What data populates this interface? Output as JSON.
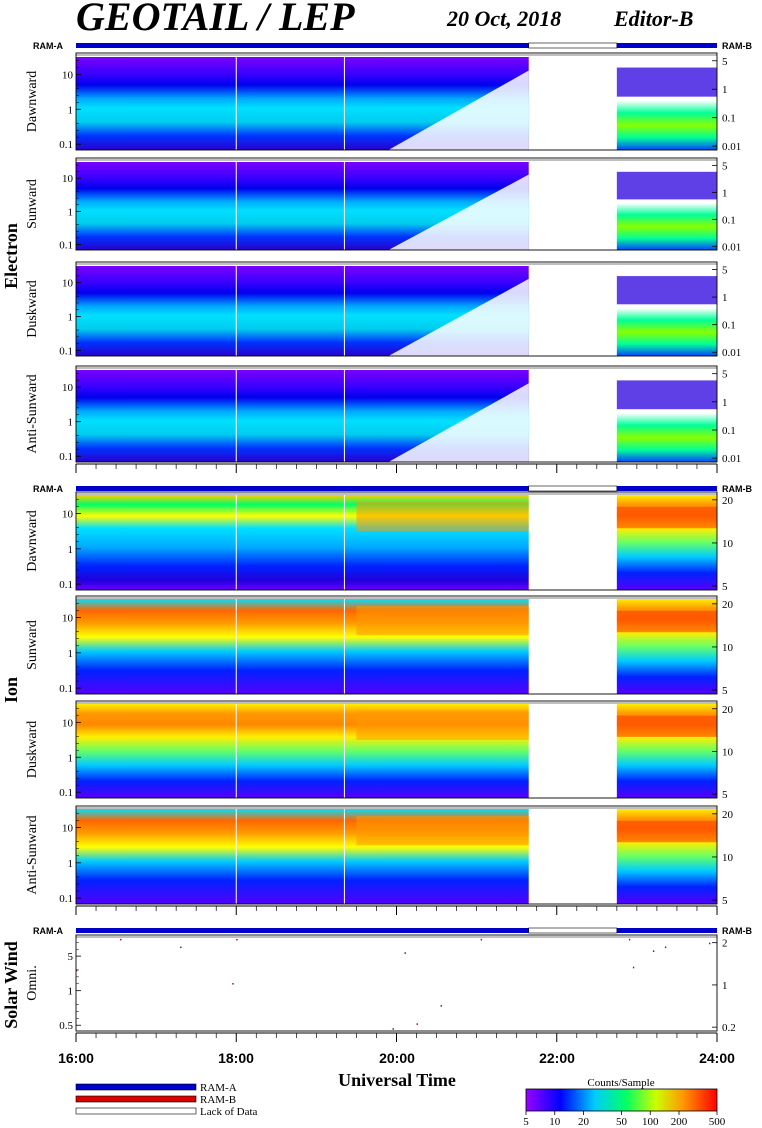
{
  "header": {
    "title": "GEOTAIL / LEP",
    "date": "20 Oct, 2018",
    "editor": "Editor-B"
  },
  "ram_labels": {
    "left": "RAM-A",
    "right": "RAM-B"
  },
  "groups": [
    {
      "label": "Electron"
    },
    {
      "label": "Ion"
    },
    {
      "label": "Solar Wind"
    }
  ],
  "panels": [
    {
      "label": "Dawnward",
      "species": "electron",
      "left_ticks": [
        "10",
        "1",
        "0.1"
      ],
      "right_ticks": [
        "5",
        "1",
        "0.1",
        "0.01"
      ]
    },
    {
      "label": "Sunward",
      "species": "electron",
      "left_ticks": [
        "10",
        "1",
        "0.1"
      ],
      "right_ticks": [
        "5",
        "1",
        "0.1",
        "0.01"
      ]
    },
    {
      "label": "Duskward",
      "species": "electron",
      "left_ticks": [
        "10",
        "1",
        "0.1"
      ],
      "right_ticks": [
        "5",
        "1",
        "0.1",
        "0.01"
      ]
    },
    {
      "label": "Anti-Sunward",
      "species": "electron",
      "left_ticks": [
        "10",
        "1",
        "0.1"
      ],
      "right_ticks": [
        "5",
        "1",
        "0.1",
        "0.01"
      ]
    },
    {
      "label": "Dawnward",
      "species": "ion",
      "left_ticks": [
        "10",
        "1",
        "0.1"
      ],
      "right_ticks": [
        "20",
        "10",
        "5"
      ]
    },
    {
      "label": "Sunward",
      "species": "ion",
      "left_ticks": [
        "10",
        "1",
        "0.1"
      ],
      "right_ticks": [
        "20",
        "10",
        "5"
      ]
    },
    {
      "label": "Duskward",
      "species": "ion",
      "left_ticks": [
        "10",
        "1",
        "0.1"
      ],
      "right_ticks": [
        "20",
        "10",
        "5"
      ]
    },
    {
      "label": "Anti-Sunward",
      "species": "ion",
      "left_ticks": [
        "10",
        "1",
        "0.1"
      ],
      "right_ticks": [
        "20",
        "10",
        "5"
      ]
    },
    {
      "label": "Omni.",
      "species": "solarwind",
      "left_ticks": [
        "5",
        "1",
        "0.5"
      ],
      "right_ticks": [
        "2",
        "1",
        "0.2"
      ]
    }
  ],
  "x_axis": {
    "label": "Universal Time",
    "ticks": [
      "16:00",
      "18:00",
      "20:00",
      "22:00",
      "24:00"
    ],
    "range_hours": [
      16,
      24
    ],
    "gap_hours": [
      21.65,
      22.75
    ]
  },
  "legend": {
    "items": [
      {
        "label": "RAM-A",
        "color": "#0000cc"
      },
      {
        "label": "RAM-B",
        "color": "#dd0000"
      },
      {
        "label": "Lack of Data",
        "color": "#ffffff"
      }
    ]
  },
  "colorbar": {
    "title": "Counts/Sample",
    "ticks": [
      "5",
      "10",
      "20",
      "50",
      "100",
      "200",
      "500"
    ]
  },
  "chart_data": {
    "type": "heatmap",
    "title": "GEOTAIL / LEP",
    "xlabel": "Universal Time",
    "x_range": [
      16,
      24
    ],
    "data_gap": [
      21.65,
      22.75
    ],
    "colorbar_range": [
      5,
      500
    ],
    "colorbar_scale": "log",
    "series": [
      {
        "name": "Electron Dawnward",
        "y_range": [
          0.1,
          20
        ]
      },
      {
        "name": "Electron Sunward",
        "y_range": [
          0.1,
          20
        ]
      },
      {
        "name": "Electron Duskward",
        "y_range": [
          0.1,
          20
        ]
      },
      {
        "name": "Electron Anti-Sunward",
        "y_range": [
          0.1,
          20
        ]
      },
      {
        "name": "Ion Dawnward",
        "y_range": [
          0.1,
          30
        ]
      },
      {
        "name": "Ion Sunward",
        "y_range": [
          0.1,
          30
        ]
      },
      {
        "name": "Ion Duskward",
        "y_range": [
          0.1,
          30
        ]
      },
      {
        "name": "Ion Anti-Sunward",
        "y_range": [
          0.1,
          30
        ]
      },
      {
        "name": "Solar Wind Omni.",
        "y_range": [
          0.2,
          7
        ]
      }
    ]
  }
}
